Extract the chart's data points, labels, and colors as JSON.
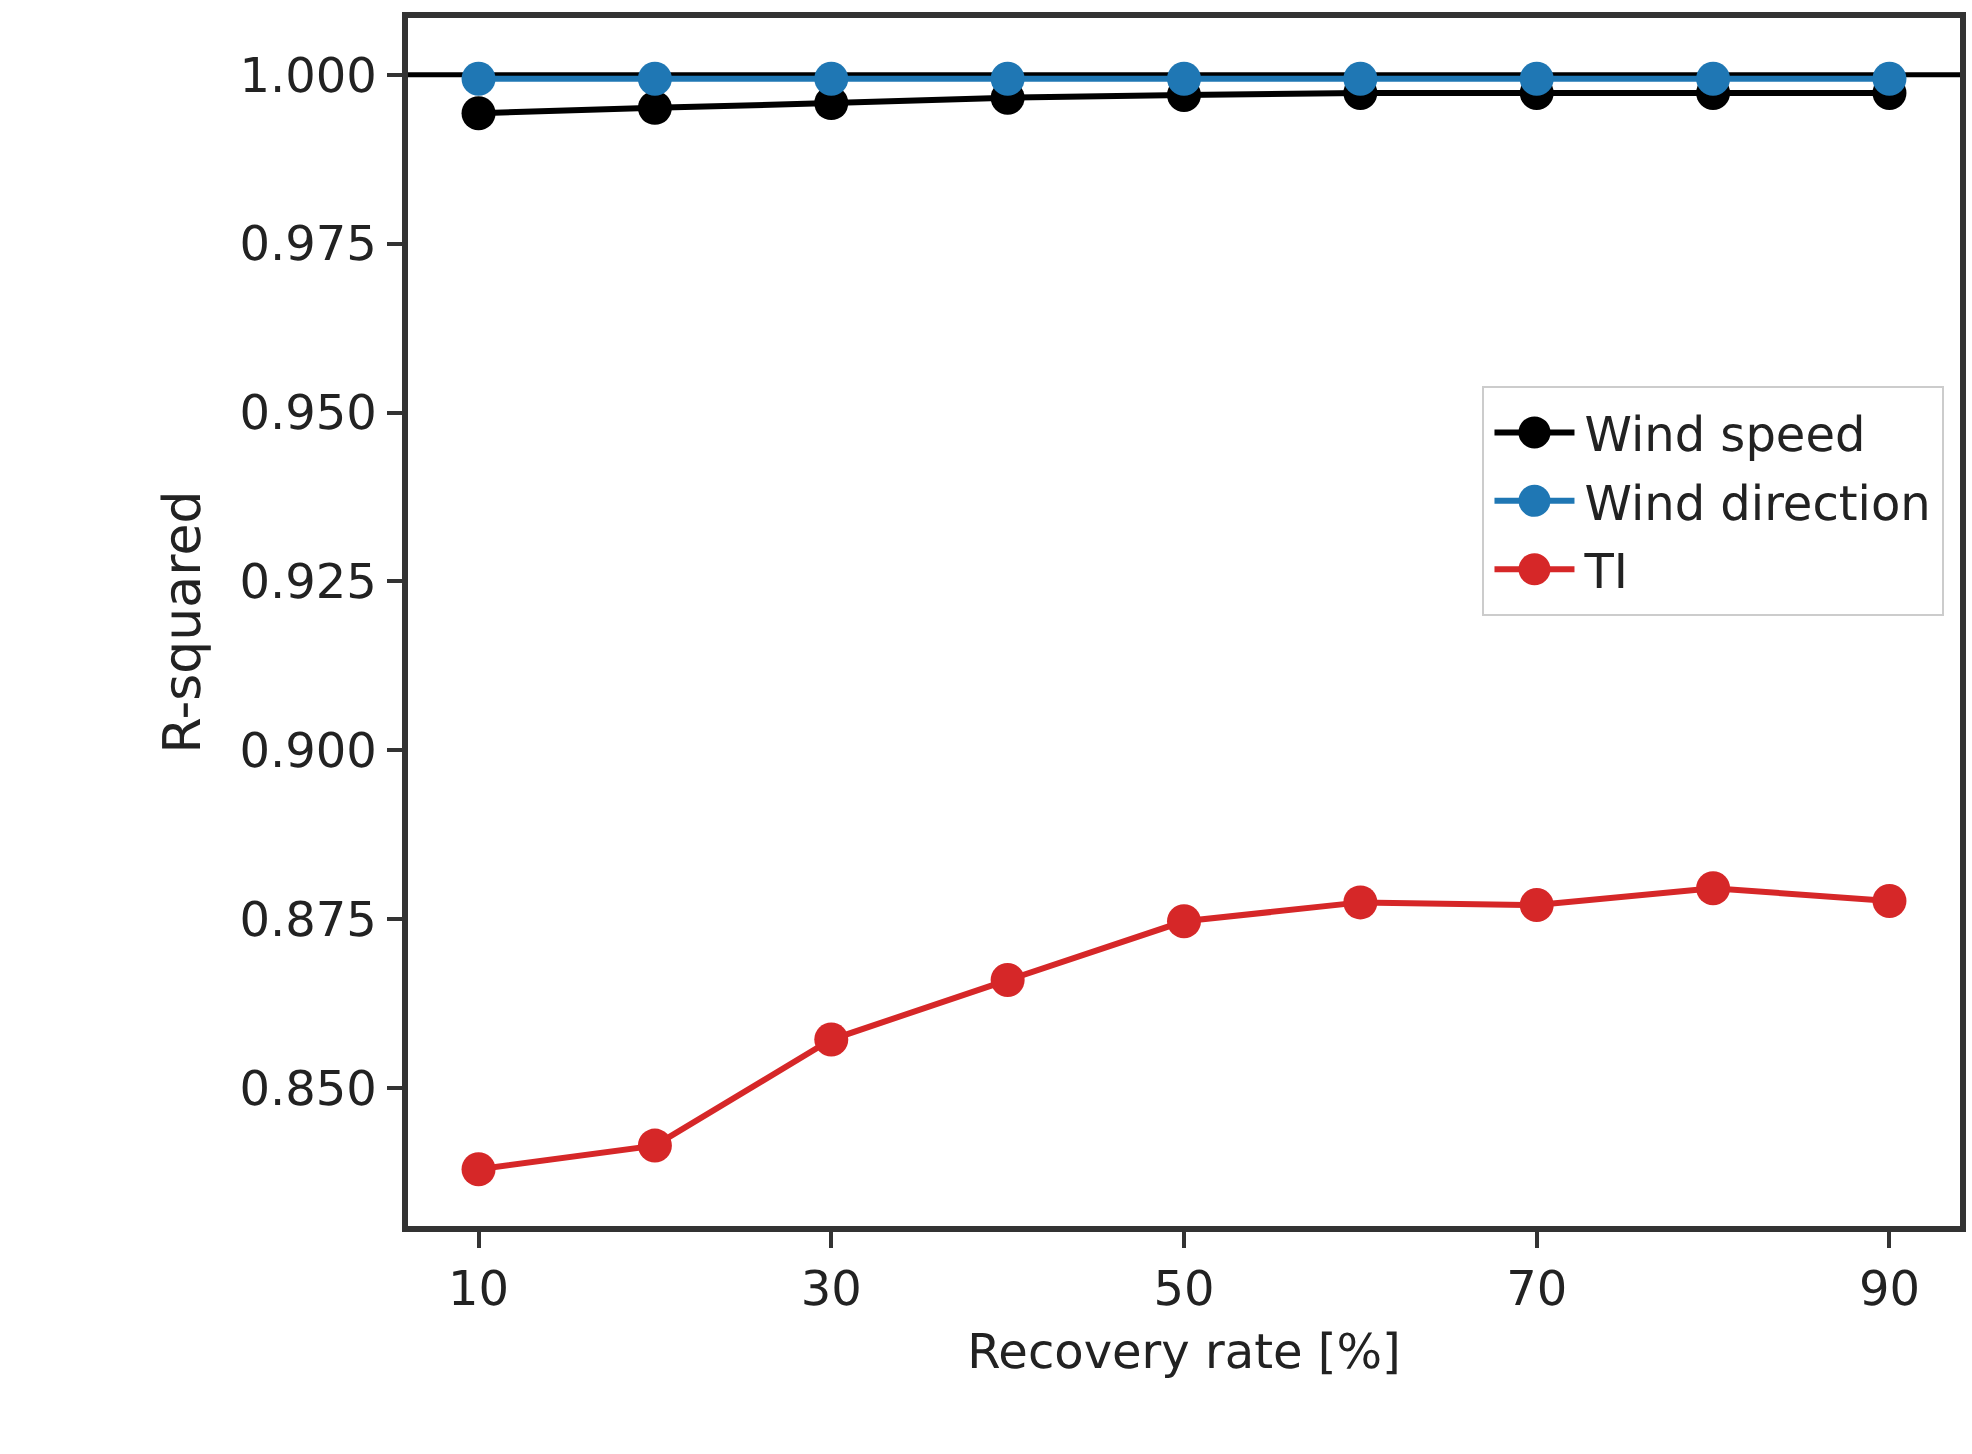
{
  "chart_data": {
    "type": "line",
    "xlabel": "Recovery rate [%]",
    "ylabel": "R-squared",
    "x": [
      10,
      20,
      30,
      40,
      50,
      60,
      70,
      80,
      90
    ],
    "series": [
      {
        "name": "Wind speed",
        "color": "#000000",
        "values": [
          0.9943,
          0.9951,
          0.9958,
          0.9966,
          0.997,
          0.9973,
          0.9973,
          0.9973,
          0.9973
        ]
      },
      {
        "name": "Wind direction",
        "color": "#1f77b4",
        "values": [
          0.9994,
          0.9994,
          0.9994,
          0.9994,
          0.9994,
          0.9994,
          0.9994,
          0.9994,
          0.9994
        ]
      },
      {
        "name": "TI",
        "color": "#d62728",
        "values": [
          0.838,
          0.8415,
          0.8572,
          0.866,
          0.8747,
          0.8775,
          0.8771,
          0.8796,
          0.8777
        ]
      }
    ],
    "ref_lines": [
      {
        "axis": "y",
        "value": 1.0,
        "color": "#000000"
      }
    ],
    "xlim": [
      6,
      94
    ],
    "xticks": [
      10,
      30,
      50,
      70,
      90
    ],
    "ylim": [
      0.8296,
      1.0084
    ],
    "yticks": [
      {
        "value": 0.85,
        "label": "0.850"
      },
      {
        "value": 0.875,
        "label": "0.875"
      },
      {
        "value": 0.9,
        "label": "0.900"
      },
      {
        "value": 0.925,
        "label": "0.925"
      },
      {
        "value": 0.95,
        "label": "0.950"
      },
      {
        "value": 0.975,
        "label": "0.975"
      },
      {
        "value": 1.0,
        "label": "1.000"
      }
    ],
    "grid": false,
    "legend": "right",
    "marker": "circle",
    "line_style": "solid"
  }
}
